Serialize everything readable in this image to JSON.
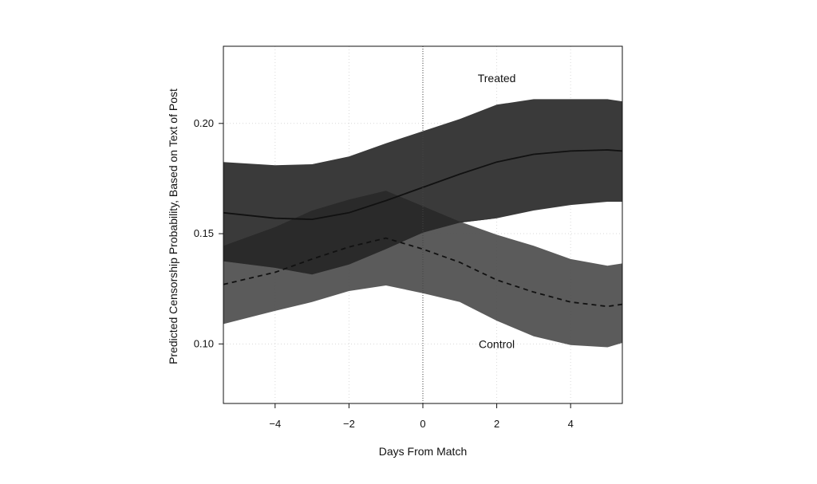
{
  "chart_data": {
    "type": "line",
    "xlabel": "Days From Match",
    "ylabel": "Predicted Censorship Probability, Based on Text of Post",
    "xlim": [
      -5.4,
      5.4
    ],
    "ylim": [
      0.073,
      0.235
    ],
    "x_ticks": [
      -4,
      -2,
      0,
      2,
      4
    ],
    "x_tick_labels": [
      "−4",
      "−2",
      "0",
      "2",
      "4"
    ],
    "y_ticks": [
      0.1,
      0.15,
      0.2
    ],
    "y_tick_labels": [
      "0.10",
      "0.15",
      "0.20"
    ],
    "grid": true,
    "reference_line_x": 0,
    "x": [
      -5.4,
      -4,
      -3,
      -2,
      -1,
      0,
      1,
      2,
      3,
      4,
      5,
      5.4
    ],
    "series": [
      {
        "name": "Treated",
        "style": "solid",
        "values": [
          0.1595,
          0.157,
          0.1565,
          0.1595,
          0.165,
          0.171,
          0.177,
          0.1825,
          0.186,
          0.1875,
          0.188,
          0.1875
        ],
        "lower": [
          0.1375,
          0.1345,
          0.1315,
          0.136,
          0.143,
          0.1505,
          0.155,
          0.157,
          0.1605,
          0.163,
          0.1645,
          0.1645
        ],
        "upper": [
          0.1825,
          0.181,
          0.1815,
          0.185,
          0.191,
          0.1965,
          0.202,
          0.2085,
          0.211,
          0.211,
          0.211,
          0.21
        ]
      },
      {
        "name": "Control",
        "style": "dashed",
        "values": [
          0.127,
          0.1325,
          0.1385,
          0.144,
          0.148,
          0.143,
          0.137,
          0.129,
          0.1235,
          0.119,
          0.117,
          0.118
        ],
        "lower": [
          0.109,
          0.115,
          0.119,
          0.124,
          0.1265,
          0.123,
          0.119,
          0.1105,
          0.1035,
          0.0995,
          0.0985,
          0.1005
        ],
        "upper": [
          0.1445,
          0.153,
          0.1605,
          0.1655,
          0.1695,
          0.1625,
          0.1555,
          0.1495,
          0.1445,
          0.1385,
          0.1355,
          0.1365
        ]
      }
    ],
    "annotations": [
      {
        "text": "Treated",
        "x": 2.0,
        "y": 0.2205
      },
      {
        "text": "Control",
        "x": 2.0,
        "y": 0.1
      }
    ],
    "colors": {
      "treated_band": "#3a3a3a",
      "control_band": "#4d4d4d",
      "overlap_band": "#2a2a2a",
      "line": "#111111",
      "grid": "#d9d9d9",
      "frame": "#111111"
    }
  }
}
